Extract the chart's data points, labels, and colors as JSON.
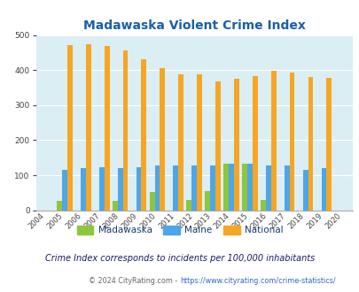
{
  "title": "Madawaska Violent Crime Index",
  "years": [
    2004,
    2005,
    2006,
    2007,
    2008,
    2009,
    2010,
    2011,
    2012,
    2013,
    2014,
    2015,
    2016,
    2017,
    2018,
    2019,
    2020
  ],
  "madawaska": [
    0,
    28,
    0,
    0,
    27,
    0,
    52,
    0,
    30,
    55,
    133,
    134,
    30,
    0,
    0,
    0,
    0
  ],
  "maine": [
    0,
    115,
    120,
    122,
    120,
    123,
    127,
    127,
    127,
    127,
    132,
    133,
    127,
    127,
    114,
    119,
    0
  ],
  "national": [
    0,
    470,
    474,
    468,
    457,
    432,
    405,
    387,
    387,
    368,
    376,
    383,
    397,
    394,
    380,
    379,
    0
  ],
  "madawaska_color": "#8dc63f",
  "maine_color": "#4da6e8",
  "national_color": "#f5a623",
  "bg_color": "#daeef3",
  "title_color": "#1a5fa8",
  "legend_label_color": "#1a3a6e",
  "note_color": "#1a1a66",
  "footer_gray": "#666666",
  "footer_blue": "#3366cc",
  "ylim": [
    0,
    500
  ],
  "yticks": [
    0,
    100,
    200,
    300,
    400,
    500
  ],
  "bar_width": 0.28,
  "note_text": "Crime Index corresponds to incidents per 100,000 inhabitants",
  "footer_gray_text": "© 2024 CityRating.com - ",
  "footer_blue_text": "https://www.cityrating.com/crime-statistics/"
}
